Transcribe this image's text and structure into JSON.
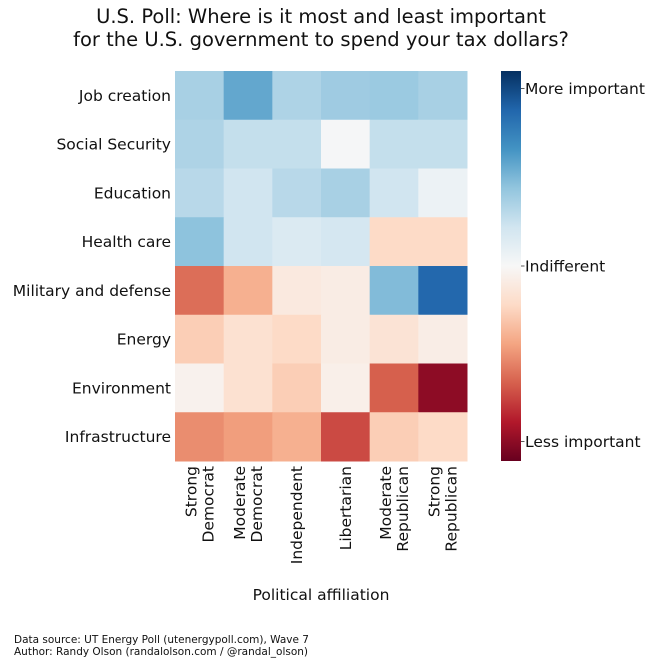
{
  "chart_data": {
    "type": "heatmap",
    "title": [
      "U.S. Poll: Where is it most and least important",
      "for the U.S. government to spend your tax dollars?"
    ],
    "xlabel": "Political affiliation",
    "ylabel": "",
    "x_categories": [
      [
        "Strong",
        "Democrat"
      ],
      [
        "Moderate",
        "Democrat"
      ],
      [
        "Independent"
      ],
      [
        "Libertarian"
      ],
      [
        "Moderate",
        "Republican"
      ],
      [
        "Strong",
        "Republican"
      ]
    ],
    "y_categories": [
      "Job creation",
      "Social Security",
      "Education",
      "Health care",
      "Military and defense",
      "Energy",
      "Environment",
      "Infrastructure"
    ],
    "values": [
      [
        0.33,
        0.52,
        0.31,
        0.36,
        0.37,
        0.33
      ],
      [
        0.31,
        0.24,
        0.24,
        0.01,
        0.24,
        0.24
      ],
      [
        0.28,
        0.2,
        0.28,
        0.33,
        0.2,
        0.06
      ],
      [
        0.41,
        0.2,
        0.15,
        0.18,
        -0.2,
        -0.2
      ],
      [
        -0.56,
        -0.36,
        -0.1,
        -0.08,
        0.44,
        0.79
      ],
      [
        -0.25,
        -0.16,
        -0.2,
        -0.08,
        -0.14,
        -0.07
      ],
      [
        -0.04,
        -0.16,
        -0.25,
        -0.06,
        -0.6,
        -0.9
      ],
      [
        -0.47,
        -0.42,
        -0.36,
        -0.66,
        -0.25,
        -0.2
      ]
    ],
    "value_range": [
      -1.0,
      1.0
    ],
    "colormap": "RdBu",
    "colormap_stops": [
      "#67001f",
      "#b2182b",
      "#d6604d",
      "#f4a582",
      "#fddbc7",
      "#f7f7f7",
      "#d1e5f0",
      "#92c5de",
      "#4393c3",
      "#2166ac",
      "#053061"
    ],
    "colorbar": {
      "ticks": [
        {
          "label": "More important",
          "value": 0.91
        },
        {
          "label": "Indifferent",
          "value": 0.0
        },
        {
          "label": "Less important",
          "value": -0.9
        }
      ]
    },
    "grid": false,
    "legend": "right (colorbar)"
  },
  "footer": {
    "line1": "Data source: UT Energy Poll (utenergypoll.com), Wave 7",
    "line2": "Author: Randy Olson (randalolson.com / @randal_olson)"
  }
}
